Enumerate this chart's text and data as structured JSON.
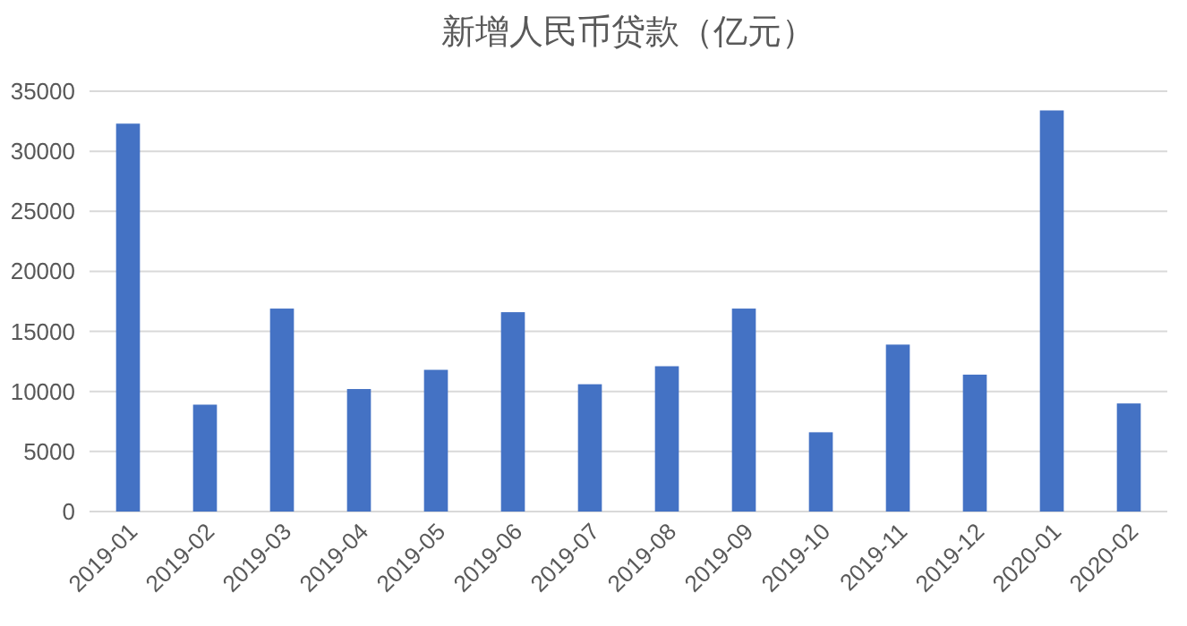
{
  "chart_data": {
    "type": "bar",
    "title": "新增人民币贷款（亿元）",
    "categories": [
      "2019-01",
      "2019-02",
      "2019-03",
      "2019-04",
      "2019-05",
      "2019-06",
      "2019-07",
      "2019-08",
      "2019-09",
      "2019-10",
      "2019-11",
      "2019-12",
      "2020-01",
      "2020-02"
    ],
    "values": [
      32300,
      8900,
      16900,
      10200,
      11800,
      16600,
      10600,
      12100,
      16900,
      6600,
      13900,
      11400,
      33400,
      9000
    ],
    "color": "#4472c4",
    "ylim": [
      0,
      35000
    ],
    "yticks": [
      0,
      5000,
      10000,
      15000,
      20000,
      25000,
      30000,
      35000
    ],
    "grid": "y"
  }
}
